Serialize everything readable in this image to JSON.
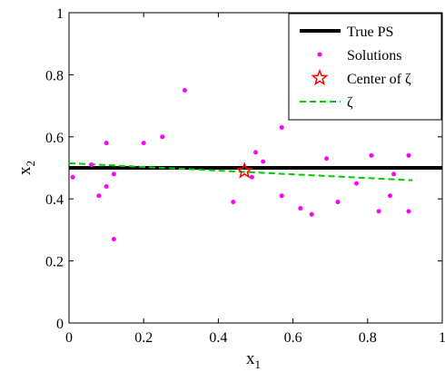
{
  "chart_data": {
    "type": "scatter",
    "xlabel": "x",
    "xlabel_sub": "1",
    "ylabel": "x",
    "ylabel_sub": "2",
    "xlim": [
      0,
      1
    ],
    "ylim": [
      0,
      1
    ],
    "xticks": [
      "0",
      "0.2",
      "0.4",
      "0.6",
      "0.8",
      "1"
    ],
    "yticks": [
      "0",
      "0.2",
      "0.4",
      "0.6",
      "0.8",
      "1"
    ],
    "grid": false,
    "legend_position": "top-right",
    "series": [
      {
        "name": "True PS",
        "kind": "line",
        "color": "#000000",
        "x": [
          0,
          1
        ],
        "y": [
          0.5,
          0.5
        ]
      },
      {
        "name": "Solutions",
        "kind": "scatter",
        "color": "#ff00ff",
        "points": [
          [
            0.01,
            0.47
          ],
          [
            0.06,
            0.51
          ],
          [
            0.1,
            0.58
          ],
          [
            0.1,
            0.44
          ],
          [
            0.12,
            0.48
          ],
          [
            0.12,
            0.27
          ],
          [
            0.08,
            0.41
          ],
          [
            0.2,
            0.58
          ],
          [
            0.25,
            0.6
          ],
          [
            0.31,
            0.75
          ],
          [
            0.44,
            0.39
          ],
          [
            0.49,
            0.47
          ],
          [
            0.5,
            0.55
          ],
          [
            0.52,
            0.52
          ],
          [
            0.57,
            0.63
          ],
          [
            0.57,
            0.41
          ],
          [
            0.62,
            0.37
          ],
          [
            0.65,
            0.35
          ],
          [
            0.68,
            0.67
          ],
          [
            0.69,
            0.53
          ],
          [
            0.72,
            0.39
          ],
          [
            0.77,
            0.45
          ],
          [
            0.81,
            0.54
          ],
          [
            0.83,
            0.36
          ],
          [
            0.86,
            0.41
          ],
          [
            0.87,
            0.48
          ],
          [
            0.91,
            0.54
          ],
          [
            0.91,
            0.36
          ]
        ]
      },
      {
        "name": "Center of ζ",
        "kind": "star",
        "color": "#ff0000",
        "x": 0.47,
        "y": 0.49
      },
      {
        "name": "ζ",
        "kind": "dashed-line",
        "color": "#00cc00",
        "x": [
          0,
          0.92
        ],
        "y": [
          0.515,
          0.46
        ]
      }
    ]
  }
}
